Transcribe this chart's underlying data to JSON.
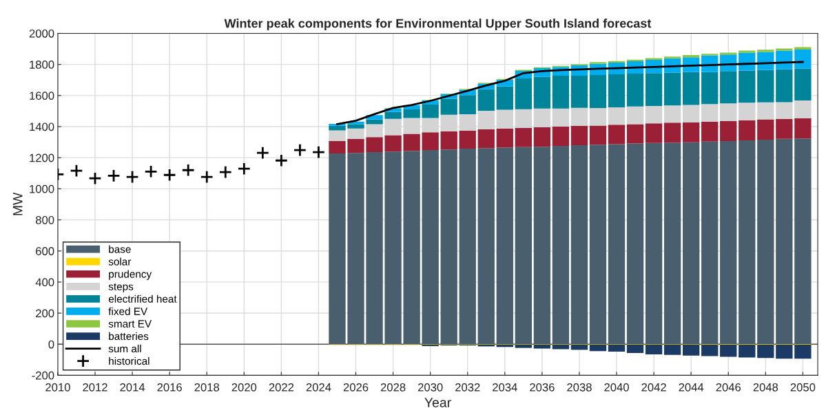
{
  "chart_data": {
    "type": "bar",
    "stacked": true,
    "title": "Winter peak components for Environmental Upper South Island forecast",
    "xlabel": "Year",
    "ylabel": "MW",
    "xlim": [
      2010,
      2050.8
    ],
    "xticks": [
      2010,
      2012,
      2014,
      2016,
      2018,
      2020,
      2022,
      2024,
      2026,
      2028,
      2030,
      2032,
      2034,
      2036,
      2038,
      2040,
      2042,
      2044,
      2046,
      2048,
      2050
    ],
    "ylim": [
      -200,
      2000
    ],
    "yticks": [
      -200,
      0,
      200,
      400,
      600,
      800,
      1000,
      1200,
      1400,
      1600,
      1800,
      2000
    ],
    "grid": true,
    "legend": "bottom left",
    "series": [
      {
        "name": "base",
        "color": "#4a5f6d",
        "x": [
          2025,
          2026,
          2027,
          2028,
          2029,
          2030,
          2031,
          2032,
          2033,
          2034,
          2035,
          2036,
          2037,
          2038,
          2039,
          2040,
          2041,
          2042,
          2043,
          2044,
          2045,
          2046,
          2047,
          2048,
          2049,
          2050
        ],
        "values": [
          1227,
          1231,
          1236,
          1240,
          1244,
          1250,
          1253,
          1258,
          1262,
          1265,
          1268,
          1271,
          1276,
          1280,
          1284,
          1287,
          1292,
          1295,
          1297,
          1299,
          1304,
          1307,
          1311,
          1316,
          1321,
          1324
        ]
      },
      {
        "name": "solar",
        "color": "#ffd700",
        "x": [
          2025,
          2026,
          2027,
          2028,
          2029,
          2030,
          2031,
          2032,
          2033,
          2034,
          2035,
          2036,
          2037,
          2038,
          2039,
          2040,
          2041,
          2042,
          2043,
          2044,
          2045,
          2046,
          2047,
          2048,
          2049,
          2050
        ],
        "values": [
          -3,
          -3,
          -3,
          -3,
          -3,
          -3,
          -3,
          -3,
          -3,
          -3,
          -3,
          -3,
          -3,
          -3,
          -3,
          -3,
          -3,
          -3,
          -3,
          -3,
          -3,
          -3,
          -3,
          -3,
          -3,
          -3
        ]
      },
      {
        "name": "prudency",
        "color": "#9b2035",
        "x": [
          2025,
          2026,
          2027,
          2028,
          2029,
          2030,
          2031,
          2032,
          2033,
          2034,
          2035,
          2036,
          2037,
          2038,
          2039,
          2040,
          2041,
          2042,
          2043,
          2044,
          2045,
          2046,
          2047,
          2048,
          2049,
          2050
        ],
        "values": [
          80,
          90,
          97,
          105,
          110,
          113,
          117,
          117,
          120,
          122,
          123,
          125,
          124,
          124,
          123,
          125,
          124,
          126,
          128,
          129,
          128,
          130,
          130,
          130,
          129,
          129
        ]
      },
      {
        "name": "steps",
        "color": "#d4d4d4",
        "x": [
          2025,
          2026,
          2027,
          2028,
          2029,
          2030,
          2031,
          2032,
          2033,
          2034,
          2035,
          2036,
          2037,
          2038,
          2039,
          2040,
          2041,
          2042,
          2043,
          2044,
          2045,
          2046,
          2047,
          2048,
          2049,
          2050
        ],
        "values": [
          69,
          67,
          83,
          105,
          101,
          92,
          106,
          105,
          120,
          121,
          121,
          120,
          116,
          117,
          113,
          112,
          113,
          112,
          111,
          112,
          113,
          112,
          113,
          110,
          107,
          115
        ]
      },
      {
        "name": "electrified heat",
        "color": "#00849a",
        "x": [
          2025,
          2026,
          2027,
          2028,
          2029,
          2030,
          2031,
          2032,
          2033,
          2034,
          2035,
          2036,
          2037,
          2038,
          2039,
          2040,
          2041,
          2042,
          2043,
          2044,
          2045,
          2046,
          2047,
          2048,
          2049,
          2050
        ],
        "values": [
          30,
          28,
          31,
          45,
          56,
          87,
          103,
          123,
          138,
          150,
          198,
          204,
          212,
          207,
          212,
          212,
          212,
          211,
          212,
          211,
          206,
          208,
          207,
          208,
          212,
          205
        ]
      },
      {
        "name": "fixed EV",
        "color": "#00aeef",
        "x": [
          2025,
          2026,
          2027,
          2028,
          2029,
          2030,
          2031,
          2032,
          2033,
          2034,
          2035,
          2036,
          2037,
          2038,
          2039,
          2040,
          2041,
          2042,
          2043,
          2044,
          2045,
          2046,
          2047,
          2048,
          2049,
          2050
        ],
        "values": [
          12,
          16,
          27,
          22,
          27,
          27,
          30,
          34,
          37,
          44,
          49,
          56,
          56,
          66,
          72,
          76,
          80,
          86,
          91,
          95,
          107,
          107,
          115,
          116,
          120,
          123
        ]
      },
      {
        "name": "smart EV",
        "color": "#8dc63f",
        "x": [
          2025,
          2026,
          2027,
          2028,
          2029,
          2030,
          2031,
          2032,
          2033,
          2034,
          2035,
          2036,
          2037,
          2038,
          2039,
          2040,
          2041,
          2042,
          2043,
          2044,
          2045,
          2046,
          2047,
          2048,
          2049,
          2050
        ],
        "values": [
          0,
          0,
          null,
          3,
          null,
          3,
          4,
          5,
          5,
          5,
          6,
          6,
          7,
          8,
          11,
          10,
          10,
          11,
          12,
          14,
          10,
          12,
          13,
          15,
          14,
          15
        ]
      },
      {
        "name": "batteries",
        "color": "#1b3a66",
        "x": [
          2025,
          2026,
          2027,
          2028,
          2029,
          2030,
          2031,
          2032,
          2033,
          2034,
          2035,
          2036,
          2037,
          2038,
          2039,
          2040,
          2041,
          2042,
          2043,
          2044,
          2045,
          2046,
          2047,
          2048,
          2049,
          2050
        ],
        "values": [
          -1,
          -1,
          -1,
          -1,
          -1,
          -9,
          -5,
          -5,
          -11,
          -15,
          -21,
          -25,
          -29,
          -33,
          -41,
          -45,
          -54,
          -62,
          -66,
          -70,
          -74,
          -78,
          -82,
          -86,
          -90,
          -90
        ]
      },
      {
        "name": "sum all",
        "type": "line",
        "color": "#000000",
        "line_style": "solid",
        "marker": "none",
        "x": [
          2025,
          2026,
          2027,
          2028,
          2029,
          2030,
          2031,
          2032,
          2033,
          2034,
          2035,
          2036,
          2037,
          2038,
          2039,
          2040,
          2041,
          2042,
          2043,
          2044,
          2045,
          2046,
          2047,
          2048,
          2049,
          2050
        ],
        "values": [
          1416,
          1438,
          1480,
          1520,
          1539,
          1566,
          1598,
          1631,
          1665,
          1695,
          1744,
          1757,
          1764,
          1768,
          1772,
          1776,
          1780,
          1784,
          1788,
          1792,
          1796,
          1800,
          1804,
          1808,
          1812,
          1816
        ]
      },
      {
        "name": "historical",
        "type": "scatter",
        "color": "#000000",
        "marker": "cross",
        "x": [
          2010,
          2011,
          2012,
          2013,
          2014,
          2015,
          2016,
          2017,
          2018,
          2019,
          2020,
          2021,
          2022,
          2023,
          2024
        ],
        "values": [
          1093,
          1116,
          1067,
          1084,
          1076,
          1111,
          1089,
          1120,
          1076,
          1107,
          1129,
          1231,
          1182,
          1249,
          1236
        ]
      }
    ]
  }
}
